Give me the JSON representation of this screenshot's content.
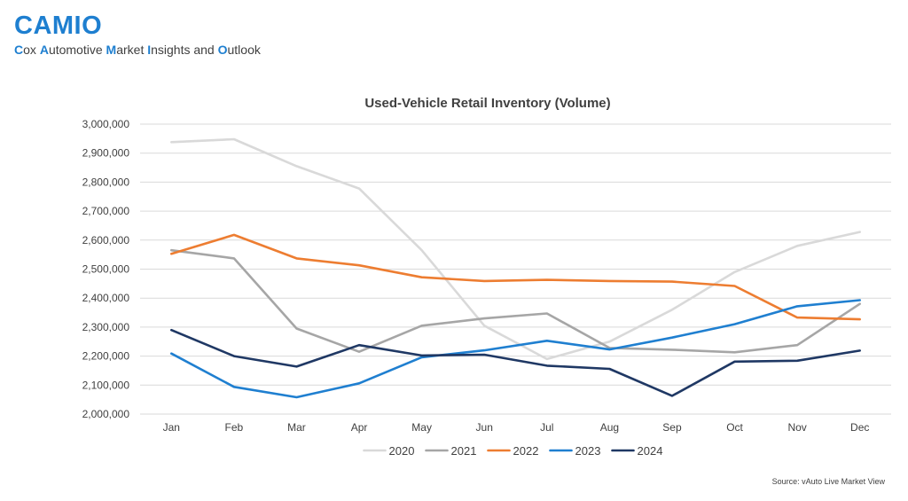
{
  "brand": {
    "title": "CAMIO",
    "subtitle_parts": [
      {
        "text": "C",
        "hl": true
      },
      {
        "text": "ox ",
        "hl": false
      },
      {
        "text": "A",
        "hl": true
      },
      {
        "text": "utomotive ",
        "hl": false
      },
      {
        "text": "M",
        "hl": true
      },
      {
        "text": "arket ",
        "hl": false
      },
      {
        "text": "I",
        "hl": true
      },
      {
        "text": "nsights and ",
        "hl": false
      },
      {
        "text": "O",
        "hl": true
      },
      {
        "text": "utlook",
        "hl": false
      }
    ]
  },
  "source": "Source: vAuto Live Market View",
  "chart_data": {
    "type": "line",
    "title": "Used-Vehicle Retail Inventory (Volume)",
    "xlabel": "",
    "ylabel": "",
    "categories": [
      "Jan",
      "Feb",
      "Mar",
      "Apr",
      "May",
      "Jun",
      "Jul",
      "Aug",
      "Sep",
      "Oct",
      "Nov",
      "Dec"
    ],
    "ylim": [
      2000000,
      3000000
    ],
    "yticks": [
      2000000,
      2100000,
      2200000,
      2300000,
      2400000,
      2500000,
      2600000,
      2700000,
      2800000,
      2900000,
      3000000
    ],
    "ytick_labels": [
      "2,000,000",
      "2,100,000",
      "2,200,000",
      "2,300,000",
      "2,400,000",
      "2,500,000",
      "2,600,000",
      "2,700,000",
      "2,800,000",
      "2,900,000",
      "3,000,000"
    ],
    "grid": true,
    "legend_position": "bottom",
    "series": [
      {
        "name": "2020",
        "color": "#d9d9d9",
        "values": [
          2938000,
          2948000,
          2855000,
          2778000,
          2565000,
          2305000,
          2190000,
          2250000,
          2360000,
          2490000,
          2580000,
          2628000
        ]
      },
      {
        "name": "2021",
        "color": "#a6a6a6",
        "values": [
          2565000,
          2537000,
          2295000,
          2215000,
          2305000,
          2330000,
          2347000,
          2228000,
          2222000,
          2213000,
          2238000,
          2380000
        ]
      },
      {
        "name": "2022",
        "color": "#ed7d31",
        "values": [
          2553000,
          2618000,
          2537000,
          2513000,
          2472000,
          2459000,
          2463000,
          2459000,
          2457000,
          2442000,
          2333000,
          2327000
        ]
      },
      {
        "name": "2023",
        "color": "#1f7fd0",
        "values": [
          2209000,
          2094000,
          2058000,
          2106000,
          2196000,
          2220000,
          2253000,
          2223000,
          2264000,
          2310000,
          2372000,
          2393000
        ]
      },
      {
        "name": "2024",
        "color": "#1f3864",
        "values": [
          2290000,
          2200000,
          2164000,
          2238000,
          2202000,
          2205000,
          2167000,
          2156000,
          2063000,
          2181000,
          2184000,
          2219000
        ]
      }
    ]
  }
}
